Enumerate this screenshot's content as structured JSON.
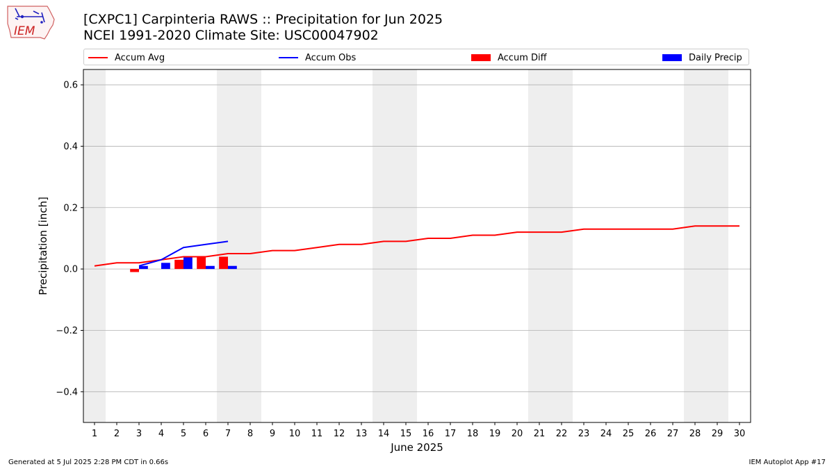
{
  "header": {
    "title_line1": "[CXPC1] Carpinteria RAWS :: Precipitation for Jun 2025",
    "title_line2": "NCEI 1991-2020 Climate Site: USC00047902",
    "logo_text": "IEM"
  },
  "footer": {
    "left": "Generated at 5 Jul 2025 2:28 PM CDT in 0.66s",
    "right": "IEM Autoplot App #17"
  },
  "colors": {
    "avg": "#ff0000",
    "obs": "#0000ff",
    "diff": "#ff0000",
    "daily": "#0000ff",
    "weekend": "#eeeeee",
    "grid": "#b0b0b0"
  },
  "chart_data": {
    "type": "bar",
    "title": "[CXPC1] Carpinteria RAWS :: Precipitation for Jun 2025",
    "xlabel": "June 2025",
    "ylabel": "Precipitation [inch]",
    "xlim": [
      0.5,
      30.5
    ],
    "ylim": [
      -0.5,
      0.65
    ],
    "yticks": [
      -0.4,
      -0.2,
      0.0,
      0.2,
      0.4,
      0.6
    ],
    "ytick_labels": [
      "−0.4",
      "−0.2",
      "0.0",
      "0.2",
      "0.4",
      "0.6"
    ],
    "grid": "horizontal",
    "legend_position": "top",
    "legend": [
      "Accum Avg",
      "Accum Obs",
      "Accum Diff",
      "Daily Precip"
    ],
    "weekend_spans": [
      [
        0.5,
        1.5
      ],
      [
        6.5,
        8.5
      ],
      [
        13.5,
        15.5
      ],
      [
        20.5,
        22.5
      ],
      [
        27.5,
        29.5
      ]
    ],
    "days": [
      1,
      2,
      3,
      4,
      5,
      6,
      7,
      8,
      9,
      10,
      11,
      12,
      13,
      14,
      15,
      16,
      17,
      18,
      19,
      20,
      21,
      22,
      23,
      24,
      25,
      26,
      27,
      28,
      29,
      30
    ],
    "series": [
      {
        "name": "Accum Avg",
        "kind": "line",
        "x": [
          1,
          2,
          3,
          4,
          5,
          6,
          7,
          8,
          9,
          10,
          11,
          12,
          13,
          14,
          15,
          16,
          17,
          18,
          19,
          20,
          21,
          22,
          23,
          24,
          25,
          26,
          27,
          28,
          29,
          30
        ],
        "values": [
          0.01,
          0.02,
          0.02,
          0.03,
          0.04,
          0.04,
          0.05,
          0.05,
          0.06,
          0.06,
          0.07,
          0.08,
          0.08,
          0.09,
          0.09,
          0.1,
          0.1,
          0.11,
          0.11,
          0.12,
          0.12,
          0.12,
          0.13,
          0.13,
          0.13,
          0.13,
          0.13,
          0.14,
          0.14,
          0.14
        ]
      },
      {
        "name": "Accum Obs",
        "kind": "line",
        "x": [
          3,
          4,
          5,
          6,
          7
        ],
        "values": [
          0.01,
          0.03,
          0.07,
          0.08,
          0.09
        ]
      },
      {
        "name": "Accum Diff",
        "kind": "bar",
        "x": [
          3,
          4,
          5,
          6,
          7
        ],
        "values": [
          -0.01,
          0.0,
          0.03,
          0.04,
          0.04
        ]
      },
      {
        "name": "Daily Precip",
        "kind": "bar",
        "x": [
          3,
          4,
          5,
          6,
          7
        ],
        "values": [
          0.01,
          0.02,
          0.04,
          0.01,
          0.01
        ]
      }
    ]
  }
}
